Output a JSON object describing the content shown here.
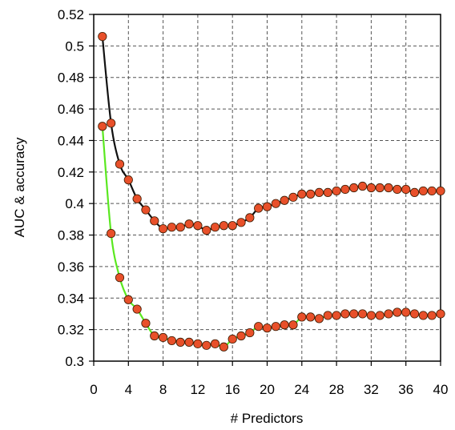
{
  "chart_data": {
    "type": "line",
    "title": "",
    "xlabel": "# Predictors",
    "ylabel": "AUC & accuracy",
    "xlim": [
      0,
      40
    ],
    "ylim": [
      0.3,
      0.52
    ],
    "xticks": [
      0,
      4,
      8,
      12,
      16,
      20,
      24,
      28,
      32,
      36,
      40
    ],
    "yticks": [
      0.3,
      0.32,
      0.34,
      0.36,
      0.38,
      0.4,
      0.42,
      0.44,
      0.46,
      0.48,
      0.5,
      0.52
    ],
    "ytick_labels": [
      "0.3",
      "0.32",
      "0.34",
      "0.36",
      "0.38",
      "0.4",
      "0.42",
      "0.44",
      "0.46",
      "0.48",
      "0.5",
      "0.52"
    ],
    "grid": true,
    "legend": "none",
    "series": [
      {
        "color": "#111111",
        "marker_color": "#e8502a",
        "x": [
          1,
          2,
          3,
          4,
          5,
          6,
          7,
          8,
          9,
          10,
          11,
          12,
          13,
          14,
          15,
          16,
          17,
          18,
          19,
          20,
          21,
          22,
          23,
          24,
          25,
          26,
          27,
          28,
          29,
          30,
          31,
          32,
          33,
          34,
          35,
          36,
          37,
          38,
          39,
          40
        ],
        "values": [
          0.506,
          0.451,
          0.425,
          0.415,
          0.403,
          0.396,
          0.389,
          0.384,
          0.385,
          0.385,
          0.387,
          0.386,
          0.383,
          0.385,
          0.386,
          0.386,
          0.388,
          0.391,
          0.397,
          0.398,
          0.4,
          0.402,
          0.404,
          0.406,
          0.406,
          0.407,
          0.407,
          0.408,
          0.409,
          0.41,
          0.411,
          0.41,
          0.41,
          0.41,
          0.409,
          0.409,
          0.407,
          0.408,
          0.408,
          0.408
        ]
      },
      {
        "color": "#5ae820",
        "marker_color": "#e8502a",
        "x": [
          1,
          2,
          3,
          4,
          5,
          6,
          7,
          8,
          9,
          10,
          11,
          12,
          13,
          14,
          15,
          16,
          17,
          18,
          19,
          20,
          21,
          22,
          23,
          24,
          25,
          26,
          27,
          28,
          29,
          30,
          31,
          32,
          33,
          34,
          35,
          36,
          37,
          38,
          39,
          40
        ],
        "values": [
          0.449,
          0.381,
          0.353,
          0.339,
          0.333,
          0.324,
          0.316,
          0.315,
          0.313,
          0.312,
          0.312,
          0.311,
          0.31,
          0.311,
          0.309,
          0.314,
          0.316,
          0.318,
          0.322,
          0.321,
          0.322,
          0.323,
          0.323,
          0.328,
          0.328,
          0.327,
          0.329,
          0.329,
          0.33,
          0.33,
          0.33,
          0.329,
          0.329,
          0.33,
          0.331,
          0.331,
          0.33,
          0.329,
          0.329,
          0.33
        ]
      }
    ]
  }
}
